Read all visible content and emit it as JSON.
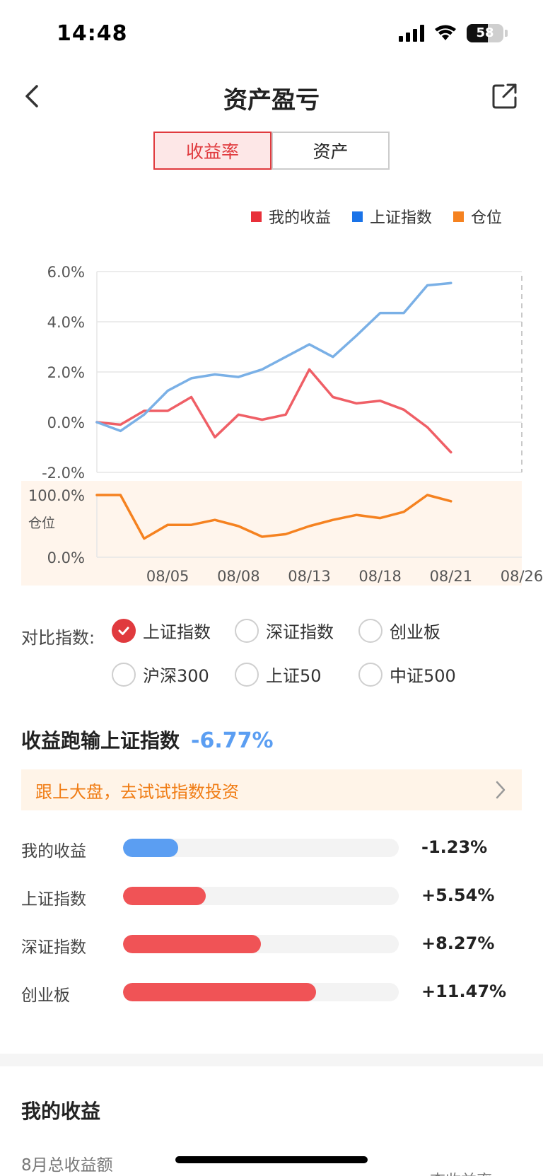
{
  "status": {
    "time": "14:48",
    "battery": "58"
  },
  "nav": {
    "title": "资产盈亏"
  },
  "tabs": [
    {
      "label": "收益率",
      "active": true
    },
    {
      "label": "资产",
      "active": false
    }
  ],
  "legend": [
    {
      "label": "我的收益",
      "color": "#e8303a"
    },
    {
      "label": "上证指数",
      "color": "#1a73e8"
    },
    {
      "label": "仓位",
      "color": "#f58220"
    }
  ],
  "chart_data": [
    {
      "type": "line",
      "y_ticks": [
        "6.0%",
        "4.0%",
        "2.0%",
        "0.0%",
        "-2.0%"
      ],
      "ylim": [
        -2,
        6
      ],
      "x_index_range": [
        0,
        18
      ],
      "reference_line_index": 18,
      "series": [
        {
          "name": "我的收益",
          "color": "#ef5f66",
          "values": [
            0.0,
            -0.1,
            0.45,
            0.45,
            1.0,
            -0.6,
            0.3,
            0.1,
            0.3,
            2.1,
            1.0,
            0.75,
            0.85,
            0.5,
            -0.2,
            -1.2
          ]
        },
        {
          "name": "上证指数",
          "color": "#7ab0e6",
          "values": [
            0.0,
            -0.35,
            0.3,
            1.25,
            1.75,
            1.9,
            1.8,
            2.1,
            2.6,
            3.1,
            2.6,
            3.45,
            4.35,
            4.35,
            5.45,
            5.54
          ]
        }
      ]
    },
    {
      "type": "line",
      "ylabel": "仓位",
      "y_ticks": [
        "100.0%",
        "0.0%"
      ],
      "ylim": [
        0,
        100
      ],
      "x_ticks": [
        "08/05",
        "08/08",
        "08/13",
        "08/18",
        "08/21",
        "08/26"
      ],
      "x_tick_index": [
        3,
        6,
        9,
        12,
        15,
        18
      ],
      "series": [
        {
          "name": "仓位",
          "color": "#f58220",
          "values": [
            100,
            100,
            30,
            52,
            52,
            60,
            50,
            33,
            37,
            50,
            60,
            68,
            63,
            73,
            100,
            90
          ]
        }
      ]
    }
  ],
  "compare": {
    "label": "对比指数:",
    "options": [
      {
        "label": "上证指数",
        "checked": true
      },
      {
        "label": "深证指数",
        "checked": false
      },
      {
        "label": "创业板",
        "checked": false
      },
      {
        "label": "沪深300",
        "checked": false
      },
      {
        "label": "上证50",
        "checked": false
      },
      {
        "label": "中证500",
        "checked": false
      }
    ]
  },
  "summary": {
    "title": "收益跑输上证指数",
    "value": "-6.77%"
  },
  "promo": {
    "text": "跟上大盘，去试试指数投资"
  },
  "comparison_bars": [
    {
      "label": "我的收益",
      "value": "-1.23%",
      "level": 0.2,
      "color": "#5b9ef2"
    },
    {
      "label": "上证指数",
      "value": "+5.54%",
      "level": 0.3,
      "color": "#f05356"
    },
    {
      "label": "深证指数",
      "value": "+8.27%",
      "level": 0.5,
      "color": "#f05356"
    },
    {
      "label": "创业板",
      "value": "+11.47%",
      "level": 0.7,
      "color": "#f05356"
    }
  ],
  "my_income": {
    "title": "我的收益",
    "month_label": "8月总收益额",
    "cutoff_text": "查收益率"
  }
}
